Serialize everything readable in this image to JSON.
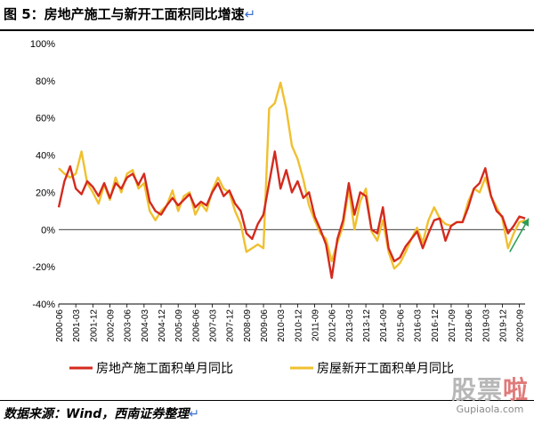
{
  "page": {
    "title": "图 5：房地产施工与新开工面积同比增速",
    "return_mark": "↵",
    "source": "数据来源：Wind，西南证券整理",
    "watermark": {
      "logo_left": "股票",
      "logo_accent": "啦",
      "url": "Gupiaola.com"
    }
  },
  "colors": {
    "series1": "#d42a1e",
    "series2": "#f0c030",
    "arrow": "#2e9d5a"
  },
  "chart_data": {
    "type": "line",
    "title": "",
    "xlabel": "",
    "ylabel": "",
    "ylim": [
      -0.4,
      1.0
    ],
    "yticks": [
      -0.4,
      -0.2,
      0,
      0.2,
      0.4,
      0.6,
      0.8,
      1.0
    ],
    "ytick_labels": [
      "-40%",
      "-20%",
      "0%",
      "20%",
      "40%",
      "60%",
      "80%",
      "100%"
    ],
    "x_start": "2000-06",
    "x_end": "2020-12",
    "xticks": [
      "2000-06",
      "2001-03",
      "2001-12",
      "2002-09",
      "2003-06",
      "2004-03",
      "2004-12",
      "2005-09",
      "2006-06",
      "2007-03",
      "2007-12",
      "2008-09",
      "2009-06",
      "2010-03",
      "2010-12",
      "2011-09",
      "2012-06",
      "2013-03",
      "2013-12",
      "2014-09",
      "2015-06",
      "2016-03",
      "2016-12",
      "2017-09",
      "2018-06",
      "2019-03",
      "2019-12",
      "2020-09"
    ],
    "legend": "bottom",
    "grid": false,
    "annotation": "green upward arrow near 2020",
    "series": [
      {
        "name": "房地产施工面积单月同比",
        "color": "#d42a1e",
        "points": [
          [
            "2000-06",
            0.12
          ],
          [
            "2000-09",
            0.26
          ],
          [
            "2000-12",
            0.34
          ],
          [
            "2001-03",
            0.22
          ],
          [
            "2001-06",
            0.19
          ],
          [
            "2001-09",
            0.26
          ],
          [
            "2001-12",
            0.23
          ],
          [
            "2002-03",
            0.18
          ],
          [
            "2002-06",
            0.25
          ],
          [
            "2002-09",
            0.17
          ],
          [
            "2002-12",
            0.25
          ],
          [
            "2003-03",
            0.22
          ],
          [
            "2003-06",
            0.28
          ],
          [
            "2003-09",
            0.3
          ],
          [
            "2003-12",
            0.24
          ],
          [
            "2004-03",
            0.3
          ],
          [
            "2004-06",
            0.15
          ],
          [
            "2004-09",
            0.1
          ],
          [
            "2004-12",
            0.08
          ],
          [
            "2005-03",
            0.13
          ],
          [
            "2005-06",
            0.17
          ],
          [
            "2005-09",
            0.13
          ],
          [
            "2005-12",
            0.16
          ],
          [
            "2006-03",
            0.19
          ],
          [
            "2006-06",
            0.12
          ],
          [
            "2006-09",
            0.15
          ],
          [
            "2006-12",
            0.13
          ],
          [
            "2007-03",
            0.2
          ],
          [
            "2007-06",
            0.25
          ],
          [
            "2007-09",
            0.18
          ],
          [
            "2007-12",
            0.21
          ],
          [
            "2008-03",
            0.14
          ],
          [
            "2008-06",
            0.1
          ],
          [
            "2008-09",
            -0.02
          ],
          [
            "2008-12",
            -0.05
          ],
          [
            "2009-03",
            0.03
          ],
          [
            "2009-06",
            0.08
          ],
          [
            "2009-09",
            0.25
          ],
          [
            "2009-12",
            0.42
          ],
          [
            "2010-03",
            0.22
          ],
          [
            "2010-06",
            0.32
          ],
          [
            "2010-09",
            0.2
          ],
          [
            "2010-12",
            0.26
          ],
          [
            "2011-03",
            0.17
          ],
          [
            "2011-06",
            0.2
          ],
          [
            "2011-09",
            0.07
          ],
          [
            "2011-12",
            0.0
          ],
          [
            "2012-03",
            -0.08
          ],
          [
            "2012-06",
            -0.26
          ],
          [
            "2012-09",
            -0.05
          ],
          [
            "2012-12",
            0.05
          ],
          [
            "2013-03",
            0.25
          ],
          [
            "2013-06",
            0.08
          ],
          [
            "2013-09",
            0.2
          ],
          [
            "2013-12",
            0.18
          ],
          [
            "2014-03",
            0.0
          ],
          [
            "2014-06",
            -0.02
          ],
          [
            "2014-09",
            0.12
          ],
          [
            "2014-12",
            -0.1
          ],
          [
            "2015-03",
            -0.17
          ],
          [
            "2015-06",
            -0.15
          ],
          [
            "2015-09",
            -0.09
          ],
          [
            "2015-12",
            -0.05
          ],
          [
            "2016-03",
            -0.01
          ],
          [
            "2016-06",
            -0.1
          ],
          [
            "2016-09",
            -0.02
          ],
          [
            "2016-12",
            0.05
          ],
          [
            "2017-03",
            0.06
          ],
          [
            "2017-06",
            -0.06
          ],
          [
            "2017-09",
            0.02
          ],
          [
            "2017-12",
            0.04
          ],
          [
            "2018-03",
            0.04
          ],
          [
            "2018-06",
            0.12
          ],
          [
            "2018-09",
            0.22
          ],
          [
            "2018-12",
            0.25
          ],
          [
            "2019-03",
            0.33
          ],
          [
            "2019-06",
            0.18
          ],
          [
            "2019-09",
            0.1
          ],
          [
            "2019-12",
            0.07
          ],
          [
            "2020-03",
            -0.02
          ],
          [
            "2020-06",
            0.02
          ],
          [
            "2020-09",
            0.07
          ],
          [
            "2020-12",
            0.06
          ]
        ]
      },
      {
        "name": "房屋新开工面积单月同比",
        "color": "#f0c030",
        "points": [
          [
            "2000-06",
            0.33
          ],
          [
            "2000-09",
            0.3
          ],
          [
            "2000-12",
            0.28
          ],
          [
            "2001-03",
            0.3
          ],
          [
            "2001-06",
            0.42
          ],
          [
            "2001-09",
            0.25
          ],
          [
            "2001-12",
            0.2
          ],
          [
            "2002-03",
            0.14
          ],
          [
            "2002-06",
            0.24
          ],
          [
            "2002-09",
            0.16
          ],
          [
            "2002-12",
            0.28
          ],
          [
            "2003-03",
            0.2
          ],
          [
            "2003-06",
            0.3
          ],
          [
            "2003-09",
            0.32
          ],
          [
            "2003-12",
            0.22
          ],
          [
            "2004-03",
            0.25
          ],
          [
            "2004-06",
            0.1
          ],
          [
            "2004-09",
            0.05
          ],
          [
            "2004-12",
            0.1
          ],
          [
            "2005-03",
            0.13
          ],
          [
            "2005-06",
            0.21
          ],
          [
            "2005-09",
            0.1
          ],
          [
            "2005-12",
            0.18
          ],
          [
            "2006-03",
            0.2
          ],
          [
            "2006-06",
            0.08
          ],
          [
            "2006-09",
            0.14
          ],
          [
            "2006-12",
            0.1
          ],
          [
            "2007-03",
            0.21
          ],
          [
            "2007-06",
            0.28
          ],
          [
            "2007-09",
            0.22
          ],
          [
            "2007-12",
            0.2
          ],
          [
            "2008-03",
            0.1
          ],
          [
            "2008-06",
            0.03
          ],
          [
            "2008-09",
            -0.12
          ],
          [
            "2008-12",
            -0.1
          ],
          [
            "2009-03",
            -0.08
          ],
          [
            "2009-06",
            -0.1
          ],
          [
            "2009-09",
            0.65
          ],
          [
            "2009-12",
            0.68
          ],
          [
            "2010-03",
            0.79
          ],
          [
            "2010-06",
            0.65
          ],
          [
            "2010-09",
            0.45
          ],
          [
            "2010-12",
            0.38
          ],
          [
            "2011-03",
            0.27
          ],
          [
            "2011-06",
            0.13
          ],
          [
            "2011-09",
            0.05
          ],
          [
            "2011-12",
            -0.02
          ],
          [
            "2012-03",
            -0.05
          ],
          [
            "2012-06",
            -0.17
          ],
          [
            "2012-09",
            -0.07
          ],
          [
            "2012-12",
            0.02
          ],
          [
            "2013-03",
            0.22
          ],
          [
            "2013-06",
            0.0
          ],
          [
            "2013-09",
            0.15
          ],
          [
            "2013-12",
            0.22
          ],
          [
            "2014-03",
            -0.01
          ],
          [
            "2014-06",
            -0.06
          ],
          [
            "2014-09",
            0.05
          ],
          [
            "2014-12",
            -0.12
          ],
          [
            "2015-03",
            -0.21
          ],
          [
            "2015-06",
            -0.18
          ],
          [
            "2015-09",
            -0.12
          ],
          [
            "2015-12",
            -0.05
          ],
          [
            "2016-03",
            0.01
          ],
          [
            "2016-06",
            -0.07
          ],
          [
            "2016-09",
            0.05
          ],
          [
            "2016-12",
            0.12
          ],
          [
            "2017-03",
            0.06
          ],
          [
            "2017-06",
            0.03
          ],
          [
            "2017-09",
            0.02
          ],
          [
            "2017-12",
            0.04
          ],
          [
            "2018-03",
            0.04
          ],
          [
            "2018-06",
            0.15
          ],
          [
            "2018-09",
            0.22
          ],
          [
            "2018-12",
            0.2
          ],
          [
            "2019-03",
            0.28
          ],
          [
            "2019-06",
            0.18
          ],
          [
            "2019-09",
            0.12
          ],
          [
            "2019-12",
            0.06
          ],
          [
            "2020-03",
            -0.1
          ],
          [
            "2020-06",
            -0.02
          ],
          [
            "2020-09",
            0.04
          ],
          [
            "2020-12",
            0.05
          ]
        ]
      }
    ]
  }
}
